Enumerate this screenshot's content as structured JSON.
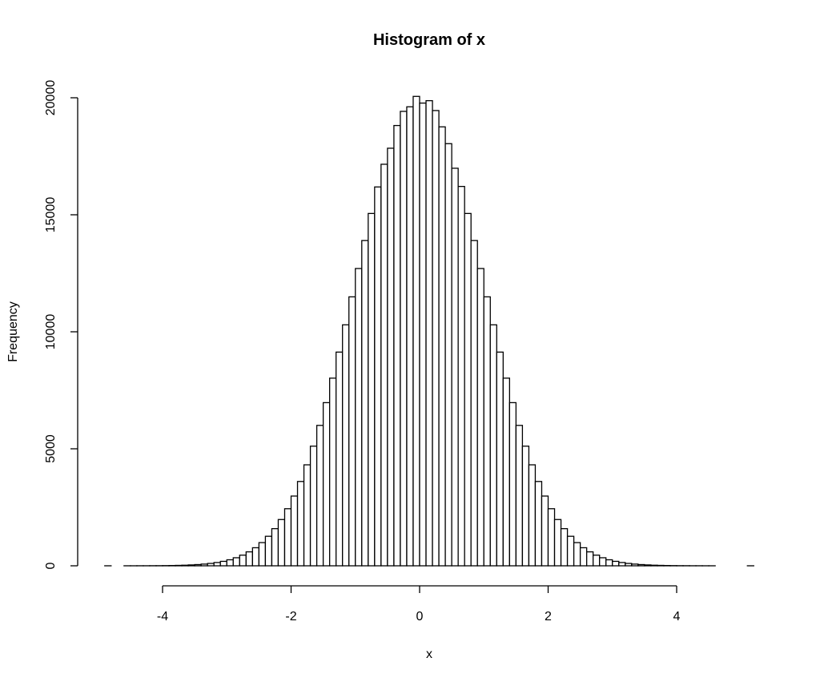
{
  "chart_data": {
    "type": "bar",
    "title": "Histogram of x",
    "xlabel": "x",
    "ylabel": "Frequency",
    "bin_start": -4.9,
    "bin_width": 0.1,
    "values": [
      1,
      0,
      0,
      1,
      1,
      2,
      2,
      4,
      5,
      8,
      12,
      18,
      25,
      37,
      52,
      73,
      101,
      140,
      190,
      257,
      344,
      455,
      596,
      772,
      991,
      1261,
      1587,
      1977,
      2439,
      2980,
      3603,
      4315,
      5113,
      6000,
      6972,
      8019,
      9132,
      10297,
      11493,
      12703,
      13899,
      15056,
      16189,
      17159,
      17844,
      18815,
      19419,
      19614,
      20059,
      19773,
      19876,
      19454,
      18757,
      18039,
      16988,
      16211,
      15056,
      13899,
      12703,
      11493,
      10297,
      9132,
      8019,
      6972,
      6000,
      5113,
      4315,
      3603,
      2980,
      2439,
      1977,
      1587,
      1261,
      991,
      772,
      596,
      455,
      344,
      257,
      190,
      140,
      101,
      73,
      52,
      37,
      25,
      18,
      12,
      8,
      5,
      4,
      2,
      2,
      1,
      1,
      0,
      0,
      0,
      0,
      0,
      1
    ],
    "xticks": [
      -4,
      -2,
      0,
      2,
      4
    ],
    "xtick_labels": [
      "-4",
      "-2",
      "0",
      "2",
      "4"
    ],
    "yticks": [
      0,
      5000,
      10000,
      15000,
      20000
    ],
    "ytick_labels": [
      "0",
      "5000",
      "10000",
      "15000",
      "20000"
    ],
    "xlim": [
      -5,
      5.3
    ],
    "ylim": [
      0,
      20059
    ],
    "grid": false,
    "bar_fill": "#ffffff",
    "bar_stroke": "#000000"
  }
}
